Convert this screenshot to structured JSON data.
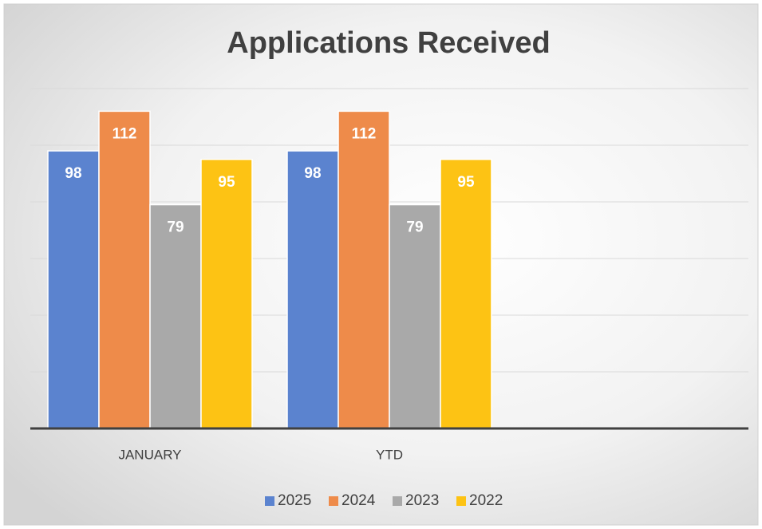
{
  "chart_data": {
    "type": "bar",
    "title": "Applications Received",
    "categories": [
      "JANUARY",
      "YTD",
      null
    ],
    "series": [
      {
        "name": "2025",
        "color": "#5b83cf",
        "values": [
          98,
          98,
          null
        ]
      },
      {
        "name": "2024",
        "color": "#ee8b4a",
        "values": [
          112,
          112,
          null
        ]
      },
      {
        "name": "2023",
        "color": "#a9a9a9",
        "values": [
          79,
          79,
          null
        ]
      },
      {
        "name": "2022",
        "color": "#fdc314",
        "values": [
          95,
          95,
          null
        ]
      }
    ],
    "ylim": [
      0,
      120
    ],
    "yticks": [
      0,
      20,
      40,
      60,
      80,
      100,
      120
    ],
    "grid": true,
    "legend": "bottom"
  }
}
